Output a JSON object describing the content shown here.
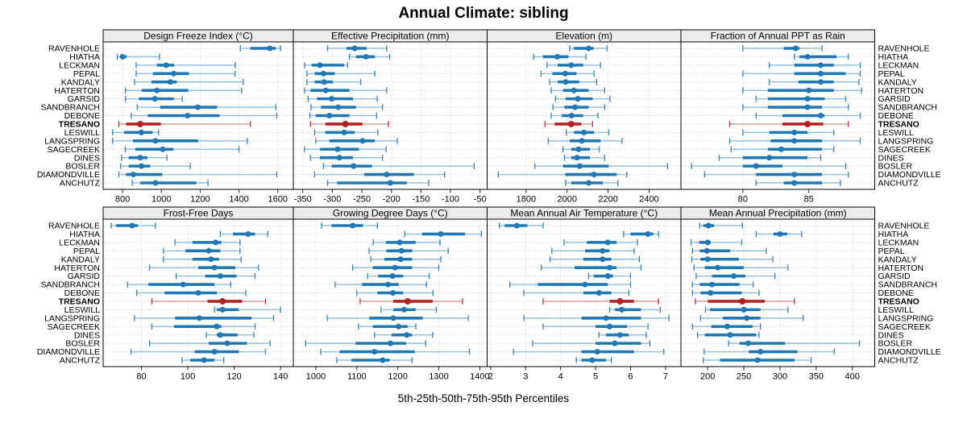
{
  "title": "Annual Climate: sibling",
  "footer": "5th-25th-50th-75th-95th Percentiles",
  "highlight_site": "TRESANO",
  "colors": {
    "series_blue": "#1f77b4",
    "highlight_red": "#b22222",
    "grid": "#c6c6c6",
    "strip_bg": "#ececec",
    "border": "#000000",
    "text": "#000000"
  },
  "sites": [
    "RAVENHOLE",
    "HIATHA",
    "LECKMAN",
    "PEPAL",
    "KANDALY",
    "HATERTON",
    "GARSID",
    "SANDBRANCH",
    "DEBONE",
    "TRESANO",
    "LESWILL",
    "LANGSPRING",
    "SAGECREEK",
    "DINES",
    "BOSLER",
    "DIAMONDVILLE",
    "ANCHUTZ"
  ],
  "chart_data": {
    "type": "percentile-dotplot-trellis",
    "percentile_levels": [
      5,
      25,
      50,
      75,
      95
    ],
    "legend_note": "thin line = 5th-95th, thick line = 25th-75th, dot = median",
    "grid": "dotted",
    "panels": [
      {
        "title": "Design Freeze Index (°C)",
        "ticks": [
          800,
          1000,
          1200,
          1400,
          1600
        ],
        "xlim": [
          700,
          1680
        ],
        "series": [
          [
            1407,
            1459,
            1559,
            1590,
            1614
          ],
          [
            773,
            788,
            800,
            821,
            990
          ],
          [
            870,
            977,
            1025,
            1066,
            1381
          ],
          [
            870,
            956,
            1064,
            1142,
            1380
          ],
          [
            862,
            949,
            1046,
            1080,
            1422
          ],
          [
            815,
            898,
            977,
            1138,
            1414
          ],
          [
            815,
            884,
            967,
            1064,
            1108
          ],
          [
            876,
            994,
            1188,
            1287,
            1590
          ],
          [
            845,
            930,
            1135,
            1300,
            1595
          ],
          [
            781,
            818,
            891,
            997,
            1459
          ],
          [
            749,
            808,
            897,
            955,
            985
          ],
          [
            749,
            853,
            970,
            1190,
            1443
          ],
          [
            814,
            866,
            1007,
            1062,
            1400
          ],
          [
            795,
            832,
            891,
            928,
            1029
          ],
          [
            790,
            832,
            897,
            942,
            1149
          ],
          [
            781,
            818,
            855,
            1004,
            1595
          ],
          [
            850,
            891,
            970,
            1180,
            1240
          ]
        ]
      },
      {
        "title": "Effective Precipitation (mm)",
        "ticks": [
          -350,
          -300,
          -250,
          -200,
          -150,
          -100,
          -50
        ],
        "xlim": [
          -366,
          -38
        ],
        "series": [
          [
            -308,
            -276,
            -262,
            -242,
            -208
          ],
          [
            -271,
            -260,
            -243,
            -228,
            -203
          ],
          [
            -347,
            -335,
            -321,
            -280,
            -274
          ],
          [
            -343,
            -330,
            -315,
            -296,
            -228
          ],
          [
            -343,
            -330,
            -314,
            -299,
            -252
          ],
          [
            -347,
            -337,
            -311,
            -271,
            -208
          ],
          [
            -341,
            -326,
            -301,
            -265,
            -224
          ],
          [
            -336,
            -319,
            -290,
            -260,
            -215
          ],
          [
            -338,
            -328,
            -305,
            -271,
            -225
          ],
          [
            -337,
            -312,
            -278,
            -249,
            -205
          ],
          [
            -330,
            -312,
            -280,
            -262,
            -223
          ],
          [
            -328,
            -305,
            -249,
            -228,
            -190
          ],
          [
            -347,
            -321,
            -291,
            -255,
            -209
          ],
          [
            -337,
            -321,
            -288,
            -265,
            -215
          ],
          [
            -315,
            -301,
            -264,
            -233,
            -60
          ],
          [
            -330,
            -246,
            -208,
            -162,
            -110
          ],
          [
            -308,
            -292,
            -202,
            -174,
            -137
          ]
        ]
      },
      {
        "title": "Elevation (m)",
        "ticks": [
          1800,
          2000,
          2200,
          2400
        ],
        "xlim": [
          1610,
          2555
        ],
        "series": [
          [
            2013,
            2033,
            2105,
            2130,
            2195
          ],
          [
            1837,
            1882,
            1952,
            2007,
            2092
          ],
          [
            1902,
            1954,
            2020,
            2078,
            2163
          ],
          [
            1873,
            1928,
            1991,
            2046,
            2131
          ],
          [
            1915,
            1954,
            1993,
            2059,
            2144
          ],
          [
            1922,
            1980,
            2033,
            2105,
            2183
          ],
          [
            1944,
            1993,
            2052,
            2124,
            2209
          ],
          [
            1931,
            1987,
            2039,
            2105,
            2183
          ],
          [
            1922,
            1974,
            2022,
            2078,
            2150
          ],
          [
            1892,
            1939,
            2020,
            2069,
            2124
          ],
          [
            1996,
            2033,
            2082,
            2131,
            2203
          ],
          [
            1908,
            2013,
            2072,
            2163,
            2268
          ],
          [
            1980,
            2020,
            2056,
            2111,
            2157
          ],
          [
            1987,
            2020,
            2048,
            2111,
            2183
          ],
          [
            1843,
            1980,
            2061,
            2203,
            2490
          ],
          [
            1664,
            1991,
            2131,
            2242,
            2291
          ],
          [
            1993,
            2020,
            2105,
            2174,
            2248
          ]
        ]
      },
      {
        "title": "Fraction of Annual PPT as Rain",
        "ticks": [
          80,
          85
        ],
        "xlim": [
          75.3,
          90
        ],
        "series": [
          [
            80.0,
            83.1,
            84.0,
            84.3,
            86.0
          ],
          [
            83.9,
            84.3,
            84.9,
            87.1,
            88.0
          ],
          [
            82.0,
            83.9,
            85.9,
            86.9,
            88.9
          ],
          [
            80.0,
            83.9,
            85.9,
            87.8,
            88.9
          ],
          [
            82.0,
            84.2,
            85.9,
            86.9,
            88.8
          ],
          [
            80.0,
            81.9,
            85.0,
            86.9,
            89.0
          ],
          [
            81.0,
            81.9,
            84.9,
            86.2,
            87.8
          ],
          [
            80.0,
            81.9,
            84.9,
            86.0,
            88.0
          ],
          [
            81.0,
            83.0,
            85.9,
            86.2,
            88.9
          ],
          [
            79.0,
            83.0,
            84.9,
            86.1,
            88.0
          ],
          [
            80.0,
            82.0,
            83.9,
            84.9,
            86.9
          ],
          [
            79.0,
            82.1,
            83.9,
            86.0,
            88.9
          ],
          [
            79.1,
            81.9,
            82.9,
            86.0,
            86.9
          ],
          [
            78.2,
            80.0,
            82.0,
            84.9,
            85.9
          ],
          [
            76.1,
            80.0,
            81.0,
            83.0,
            87.8
          ],
          [
            77.1,
            81.0,
            83.9,
            86.0,
            88.0
          ],
          [
            81.0,
            83.1,
            83.9,
            86.0,
            87.4
          ]
        ]
      },
      {
        "title": "Frost-Free Days",
        "ticks": [
          80,
          100,
          120,
          140
        ],
        "xlim": [
          63.5,
          145.5
        ],
        "series": [
          [
            67,
            69,
            76,
            78.5,
            86
          ],
          [
            114,
            119.5,
            126,
            129,
            134.5
          ],
          [
            94.5,
            102,
            112,
            114.5,
            122.5
          ],
          [
            89.5,
            99,
            109,
            114,
            122.5
          ],
          [
            89.5,
            102,
            110,
            113.5,
            123
          ],
          [
            83.5,
            104.5,
            111.5,
            120.5,
            130.5
          ],
          [
            95,
            107.5,
            114,
            121,
            129
          ],
          [
            74,
            83,
            98,
            111.5,
            118.5
          ],
          [
            78,
            90,
            104.5,
            112.5,
            125
          ],
          [
            84.5,
            108.5,
            115,
            123.5,
            133.5
          ],
          [
            111.5,
            112.5,
            115,
            122,
            140
          ],
          [
            77,
            94.5,
            105,
            127.5,
            137
          ],
          [
            84.5,
            94,
            112.5,
            114.5,
            129
          ],
          [
            108,
            112.5,
            114,
            121.5,
            128.5
          ],
          [
            83.5,
            109,
            117,
            125.5,
            135.5
          ],
          [
            75.5,
            103,
            111.5,
            122,
            133.5
          ],
          [
            97.5,
            101,
            107,
            111.5,
            115.5
          ]
        ]
      },
      {
        "title": "Growing Degree Days (°C)",
        "ticks": [
          1000,
          1100,
          1200,
          1300,
          1400
        ],
        "xlim": [
          945,
          1418
        ],
        "series": [
          [
            1014,
            1038,
            1090,
            1115,
            1150
          ],
          [
            1217,
            1259,
            1305,
            1364,
            1404
          ],
          [
            1140,
            1171,
            1205,
            1244,
            1303
          ],
          [
            1130,
            1172,
            1209,
            1235,
            1323
          ],
          [
            1134,
            1167,
            1207,
            1235,
            1305
          ],
          [
            1090,
            1139,
            1193,
            1235,
            1300
          ],
          [
            1126,
            1152,
            1187,
            1213,
            1277
          ],
          [
            1047,
            1113,
            1176,
            1202,
            1270
          ],
          [
            1100,
            1150,
            1188,
            1213,
            1286
          ],
          [
            1108,
            1189,
            1224,
            1285,
            1358
          ],
          [
            1159,
            1189,
            1215,
            1244,
            1294
          ],
          [
            1028,
            1130,
            1189,
            1261,
            1372
          ],
          [
            1104,
            1139,
            1202,
            1224,
            1244
          ],
          [
            1143,
            1185,
            1222,
            1235,
            1285
          ],
          [
            975,
            1097,
            1182,
            1220,
            1268
          ],
          [
            1012,
            1058,
            1143,
            1241,
            1375
          ],
          [
            1051,
            1087,
            1163,
            1180,
            1235
          ]
        ]
      },
      {
        "title": "Mean Annual Air Temperature (°C)",
        "ticks": [
          2,
          3,
          4,
          5,
          6,
          7
        ],
        "xlim": [
          1.9,
          7.44
        ],
        "series": [
          [
            2.25,
            2.4,
            2.75,
            3.05,
            3.5
          ],
          [
            5.8,
            6.0,
            6.5,
            6.65,
            6.8
          ],
          [
            4.1,
            4.75,
            5.35,
            5.6,
            6.2
          ],
          [
            3.75,
            4.7,
            5.2,
            5.4,
            6.1
          ],
          [
            3.7,
            4.65,
            5.2,
            5.45,
            6.25
          ],
          [
            3.45,
            4.4,
            5.4,
            5.6,
            6.3
          ],
          [
            4.8,
            4.95,
            5.35,
            5.5,
            6.0
          ],
          [
            2.55,
            3.35,
            4.7,
            5.35,
            6.0
          ],
          [
            2.95,
            4.65,
            5.1,
            5.45,
            5.95
          ],
          [
            3.5,
            5.4,
            5.7,
            6.1,
            6.8
          ],
          [
            5.4,
            5.55,
            5.75,
            6.3,
            6.85
          ],
          [
            2.95,
            4.6,
            5.3,
            6.3,
            7.1
          ],
          [
            3.5,
            5.0,
            5.4,
            5.9,
            6.5
          ],
          [
            5.1,
            5.3,
            5.7,
            5.95,
            6.45
          ],
          [
            3.2,
            5.0,
            5.55,
            6.3,
            6.55
          ],
          [
            2.65,
            4.6,
            5.05,
            6.1,
            6.95
          ],
          [
            4.45,
            4.6,
            4.9,
            5.3,
            5.45
          ]
        ]
      },
      {
        "title": "Mean Annual Precipitation (mm)",
        "ticks": [
          200,
          250,
          300,
          350,
          400
        ],
        "xlim": [
          163,
          431
        ],
        "series": [
          [
            189,
            194,
            201,
            209,
            248
          ],
          [
            267,
            291,
            300,
            310,
            330
          ],
          [
            177,
            188,
            200,
            204,
            247
          ],
          [
            179,
            189,
            199,
            231,
            281
          ],
          [
            178,
            190,
            200,
            243,
            290
          ],
          [
            181,
            196,
            214,
            250,
            311
          ],
          [
            184,
            206,
            236,
            252,
            293
          ],
          [
            179,
            189,
            206,
            244,
            263
          ],
          [
            179,
            190,
            204,
            247,
            271
          ],
          [
            183,
            200,
            248,
            279,
            320
          ],
          [
            197,
            203,
            250,
            273,
            311
          ],
          [
            190,
            221,
            254,
            273,
            332
          ],
          [
            179,
            205,
            227,
            262,
            273
          ],
          [
            186,
            196,
            231,
            267,
            271
          ],
          [
            229,
            244,
            256,
            307,
            410
          ],
          [
            195,
            257,
            273,
            324,
            375
          ],
          [
            194,
            217,
            269,
            320,
            343
          ]
        ]
      }
    ]
  }
}
